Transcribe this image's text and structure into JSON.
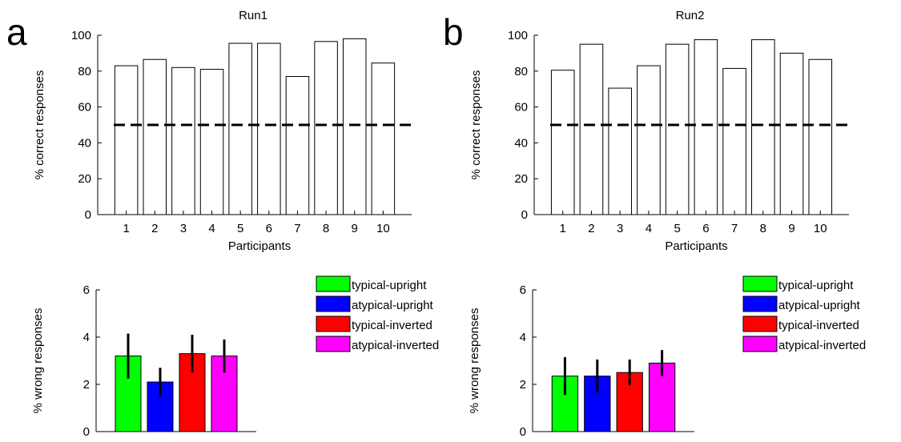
{
  "panels": [
    "a",
    "b"
  ],
  "legend": {
    "entries": [
      {
        "label": "typical-upright",
        "color": "#00ff00"
      },
      {
        "label": "atypical-upright",
        "color": "#0000ff"
      },
      {
        "label": "typical-inverted",
        "color": "#ff0000"
      },
      {
        "label": "atypical-inverted",
        "color": "#ff00ff"
      }
    ]
  },
  "chart_data": [
    {
      "id": "run1-correct",
      "type": "bar",
      "title": "Run1",
      "xlabel": "Participants",
      "ylabel": "% correct responses",
      "categories": [
        "1",
        "2",
        "3",
        "4",
        "5",
        "6",
        "7",
        "8",
        "9",
        "10"
      ],
      "values": [
        83,
        86.5,
        82,
        81,
        95.5,
        95.5,
        77,
        96.5,
        98,
        84.5
      ],
      "ylim": [
        0,
        100
      ],
      "yticks": [
        0,
        20,
        40,
        60,
        80,
        100
      ],
      "reference_line": 50,
      "bar_color": "#ffffff",
      "grid": false
    },
    {
      "id": "run2-correct",
      "type": "bar",
      "title": "Run2",
      "xlabel": "Participants",
      "ylabel": "% correct responses",
      "categories": [
        "1",
        "2",
        "3",
        "4",
        "5",
        "6",
        "7",
        "8",
        "9",
        "10"
      ],
      "values": [
        80.5,
        95,
        70.5,
        83,
        95,
        97.5,
        81.5,
        97.5,
        90,
        86.5
      ],
      "ylim": [
        0,
        100
      ],
      "yticks": [
        0,
        20,
        40,
        60,
        80,
        100
      ],
      "reference_line": 50,
      "bar_color": "#ffffff",
      "grid": false
    },
    {
      "id": "run1-wrong",
      "type": "bar",
      "title": "",
      "xlabel": "",
      "ylabel": "% wrong responses",
      "categories": [
        "typical-upright",
        "atypical-upright",
        "typical-inverted",
        "atypical-inverted"
      ],
      "values": [
        3.2,
        2.1,
        3.3,
        3.2
      ],
      "errors": [
        0.95,
        0.6,
        0.8,
        0.7
      ],
      "colors": [
        "#00ff00",
        "#0000ff",
        "#ff0000",
        "#ff00ff"
      ],
      "ylim": [
        0,
        6
      ],
      "yticks": [
        0,
        2,
        4,
        6
      ],
      "legend_position": "right",
      "grid": false
    },
    {
      "id": "run2-wrong",
      "type": "bar",
      "title": "",
      "xlabel": "",
      "ylabel": "% wrong responses",
      "categories": [
        "typical-upright",
        "atypical-upright",
        "typical-inverted",
        "atypical-inverted"
      ],
      "values": [
        2.35,
        2.35,
        2.5,
        2.9
      ],
      "errors": [
        0.8,
        0.7,
        0.55,
        0.55
      ],
      "colors": [
        "#00ff00",
        "#0000ff",
        "#ff0000",
        "#ff00ff"
      ],
      "ylim": [
        0,
        6
      ],
      "yticks": [
        0,
        2,
        4,
        6
      ],
      "legend_position": "right",
      "grid": false
    }
  ]
}
